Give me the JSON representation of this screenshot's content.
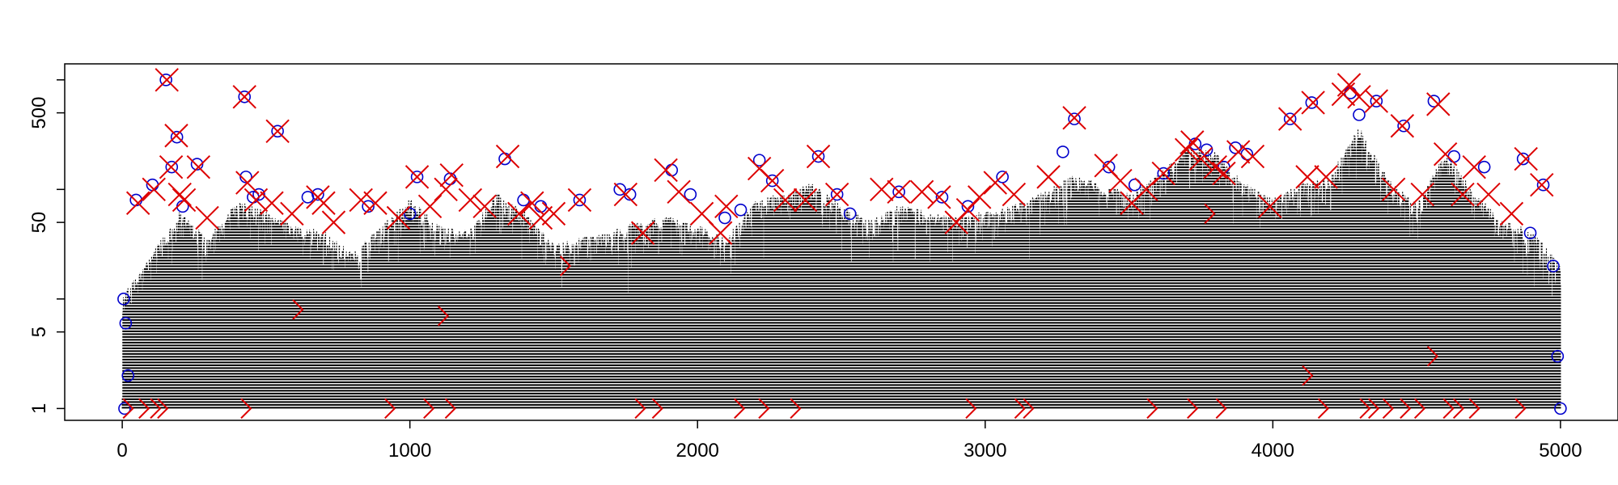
{
  "chart_data": {
    "type": "scatter",
    "title": "",
    "xlabel": "",
    "ylabel": "",
    "y_scale": "log",
    "xlim": [
      -200,
      5200
    ],
    "ylim": [
      0.78,
      1400
    ],
    "x_ticks": [
      0,
      1000,
      2000,
      3000,
      4000,
      5000
    ],
    "x_tick_labels": [
      "0",
      "1000",
      "2000",
      "3000",
      "4000",
      "5000"
    ],
    "y_ticks": [
      1,
      5,
      50,
      500
    ],
    "y_tick_labels": [
      "1",
      "5",
      "50",
      "500"
    ],
    "y_minor_ticks": [
      10,
      100,
      1000
    ],
    "n_points": 5000,
    "series": [
      {
        "name": "values",
        "style": "dotted vertical lines from 1 to value",
        "color": "#000000",
        "envelope": {
          "x": [
            0,
            200,
            300,
            400,
            500,
            600,
            700,
            800,
            1000,
            1100,
            1200,
            1300,
            1400,
            1500,
            1600,
            1700,
            1800,
            1900,
            2000,
            2100,
            2200,
            2300,
            2400,
            2500,
            2600,
            2700,
            2800,
            2900,
            3000,
            3100,
            3200,
            3300,
            3400,
            3500,
            3600,
            3700,
            3800,
            3900,
            4000,
            4100,
            4200,
            4300,
            4400,
            4500,
            4600,
            4700,
            4800,
            4900,
            5000
          ],
          "y": [
            10,
            60,
            35,
            75,
            60,
            45,
            40,
            25,
            80,
            45,
            40,
            90,
            60,
            30,
            35,
            40,
            50,
            55,
            45,
            35,
            75,
            90,
            110,
            70,
            50,
            70,
            60,
            55,
            60,
            70,
            90,
            130,
            110,
            90,
            130,
            240,
            210,
            110,
            80,
            110,
            130,
            360,
            120,
            70,
            210,
            90,
            50,
            40,
            20
          ]
        }
      },
      {
        "name": "circles",
        "marker": "open-circle",
        "color": "#0000cc",
        "points": [
          [
            5,
            10
          ],
          [
            8,
            1
          ],
          [
            12,
            6
          ],
          [
            20,
            2
          ],
          [
            48,
            80
          ],
          [
            105,
            110
          ],
          [
            152,
            1000
          ],
          [
            172,
            160
          ],
          [
            190,
            300
          ],
          [
            210,
            70
          ],
          [
            260,
            170
          ],
          [
            425,
            700
          ],
          [
            430,
            130
          ],
          [
            455,
            85
          ],
          [
            475,
            90
          ],
          [
            540,
            340
          ],
          [
            645,
            85
          ],
          [
            680,
            90
          ],
          [
            855,
            70
          ],
          [
            1000,
            60
          ],
          [
            1025,
            130
          ],
          [
            1140,
            125
          ],
          [
            1330,
            190
          ],
          [
            1395,
            80
          ],
          [
            1455,
            70
          ],
          [
            1590,
            80
          ],
          [
            1730,
            100
          ],
          [
            1765,
            90
          ],
          [
            1910,
            150
          ],
          [
            1975,
            90
          ],
          [
            2095,
            55
          ],
          [
            2150,
            65
          ],
          [
            2215,
            185
          ],
          [
            2260,
            120
          ],
          [
            2420,
            200
          ],
          [
            2485,
            90
          ],
          [
            2530,
            60
          ],
          [
            2700,
            95
          ],
          [
            2850,
            85
          ],
          [
            2940,
            70
          ],
          [
            3060,
            130
          ],
          [
            3270,
            220
          ],
          [
            3310,
            440
          ],
          [
            3430,
            160
          ],
          [
            3520,
            110
          ],
          [
            3620,
            140
          ],
          [
            3730,
            260
          ],
          [
            3770,
            230
          ],
          [
            3830,
            160
          ],
          [
            3870,
            240
          ],
          [
            3910,
            210
          ],
          [
            4060,
            440
          ],
          [
            4135,
            620
          ],
          [
            4270,
            760
          ],
          [
            4300,
            480
          ],
          [
            4360,
            640
          ],
          [
            4455,
            380
          ],
          [
            4560,
            640
          ],
          [
            4630,
            200
          ],
          [
            4735,
            160
          ],
          [
            4870,
            190
          ],
          [
            4895,
            40
          ],
          [
            4940,
            110
          ],
          [
            4975,
            20
          ],
          [
            4990,
            3
          ],
          [
            5000,
            1
          ]
        ]
      },
      {
        "name": "crosses",
        "marker": "x-cross",
        "color": "#dd0000",
        "points": [
          [
            55,
            75
          ],
          [
            110,
            100
          ],
          [
            155,
            1000
          ],
          [
            170,
            160
          ],
          [
            188,
            310
          ],
          [
            200,
            90
          ],
          [
            215,
            80
          ],
          [
            265,
            160
          ],
          [
            295,
            55
          ],
          [
            425,
            700
          ],
          [
            435,
            115
          ],
          [
            465,
            80
          ],
          [
            520,
            75
          ],
          [
            540,
            340
          ],
          [
            590,
            60
          ],
          [
            680,
            85
          ],
          [
            700,
            75
          ],
          [
            735,
            50
          ],
          [
            830,
            80
          ],
          [
            880,
            75
          ],
          [
            960,
            55
          ],
          [
            1025,
            130
          ],
          [
            1070,
            70
          ],
          [
            1125,
            100
          ],
          [
            1145,
            135
          ],
          [
            1210,
            80
          ],
          [
            1260,
            70
          ],
          [
            1340,
            200
          ],
          [
            1380,
            60
          ],
          [
            1425,
            75
          ],
          [
            1455,
            55
          ],
          [
            1500,
            60
          ],
          [
            1590,
            80
          ],
          [
            1750,
            90
          ],
          [
            1810,
            40
          ],
          [
            1890,
            150
          ],
          [
            1935,
            95
          ],
          [
            2015,
            60
          ],
          [
            2080,
            40
          ],
          [
            2100,
            70
          ],
          [
            2215,
            155
          ],
          [
            2260,
            120
          ],
          [
            2305,
            80
          ],
          [
            2375,
            80
          ],
          [
            2420,
            200
          ],
          [
            2485,
            90
          ],
          [
            2640,
            100
          ],
          [
            2700,
            95
          ],
          [
            2780,
            95
          ],
          [
            2840,
            85
          ],
          [
            2900,
            50
          ],
          [
            2940,
            65
          ],
          [
            2980,
            85
          ],
          [
            3035,
            115
          ],
          [
            3100,
            90
          ],
          [
            3220,
            130
          ],
          [
            3310,
            450
          ],
          [
            3420,
            165
          ],
          [
            3470,
            120
          ],
          [
            3510,
            75
          ],
          [
            3560,
            100
          ],
          [
            3620,
            140
          ],
          [
            3700,
            230
          ],
          [
            3720,
            270
          ],
          [
            3750,
            190
          ],
          [
            3800,
            160
          ],
          [
            3830,
            140
          ],
          [
            3880,
            220
          ],
          [
            3930,
            200
          ],
          [
            3990,
            70
          ],
          [
            4060,
            440
          ],
          [
            4120,
            130
          ],
          [
            4140,
            620
          ],
          [
            4185,
            130
          ],
          [
            4245,
            740
          ],
          [
            4265,
            900
          ],
          [
            4300,
            700
          ],
          [
            4360,
            640
          ],
          [
            4420,
            100
          ],
          [
            4450,
            380
          ],
          [
            4520,
            90
          ],
          [
            4575,
            600
          ],
          [
            4600,
            210
          ],
          [
            4660,
            90
          ],
          [
            4700,
            160
          ],
          [
            4750,
            90
          ],
          [
            4830,
            60
          ],
          [
            4880,
            190
          ],
          [
            4935,
            110
          ]
        ]
      },
      {
        "name": "chevrons",
        "marker": "right-chevron",
        "color": "#dd0000",
        "points": [
          [
            20,
            1
          ],
          [
            75,
            1
          ],
          [
            115,
            1
          ],
          [
            140,
            1
          ],
          [
            430,
            1
          ],
          [
            610,
            8
          ],
          [
            930,
            1
          ],
          [
            1065,
            1
          ],
          [
            1115,
            7
          ],
          [
            1140,
            1
          ],
          [
            1540,
            20
          ],
          [
            1800,
            1
          ],
          [
            1860,
            1
          ],
          [
            2145,
            1
          ],
          [
            2230,
            1
          ],
          [
            2340,
            1
          ],
          [
            2950,
            1
          ],
          [
            3120,
            1
          ],
          [
            3150,
            1
          ],
          [
            3580,
            1
          ],
          [
            3720,
            1
          ],
          [
            3780,
            60
          ],
          [
            3820,
            1
          ],
          [
            4120,
            2
          ],
          [
            4175,
            1
          ],
          [
            4320,
            1
          ],
          [
            4350,
            1
          ],
          [
            4400,
            1
          ],
          [
            4460,
            1
          ],
          [
            4510,
            1
          ],
          [
            4555,
            3
          ],
          [
            4610,
            1
          ],
          [
            4645,
            1
          ],
          [
            4700,
            1
          ],
          [
            4860,
            1
          ]
        ]
      }
    ]
  }
}
